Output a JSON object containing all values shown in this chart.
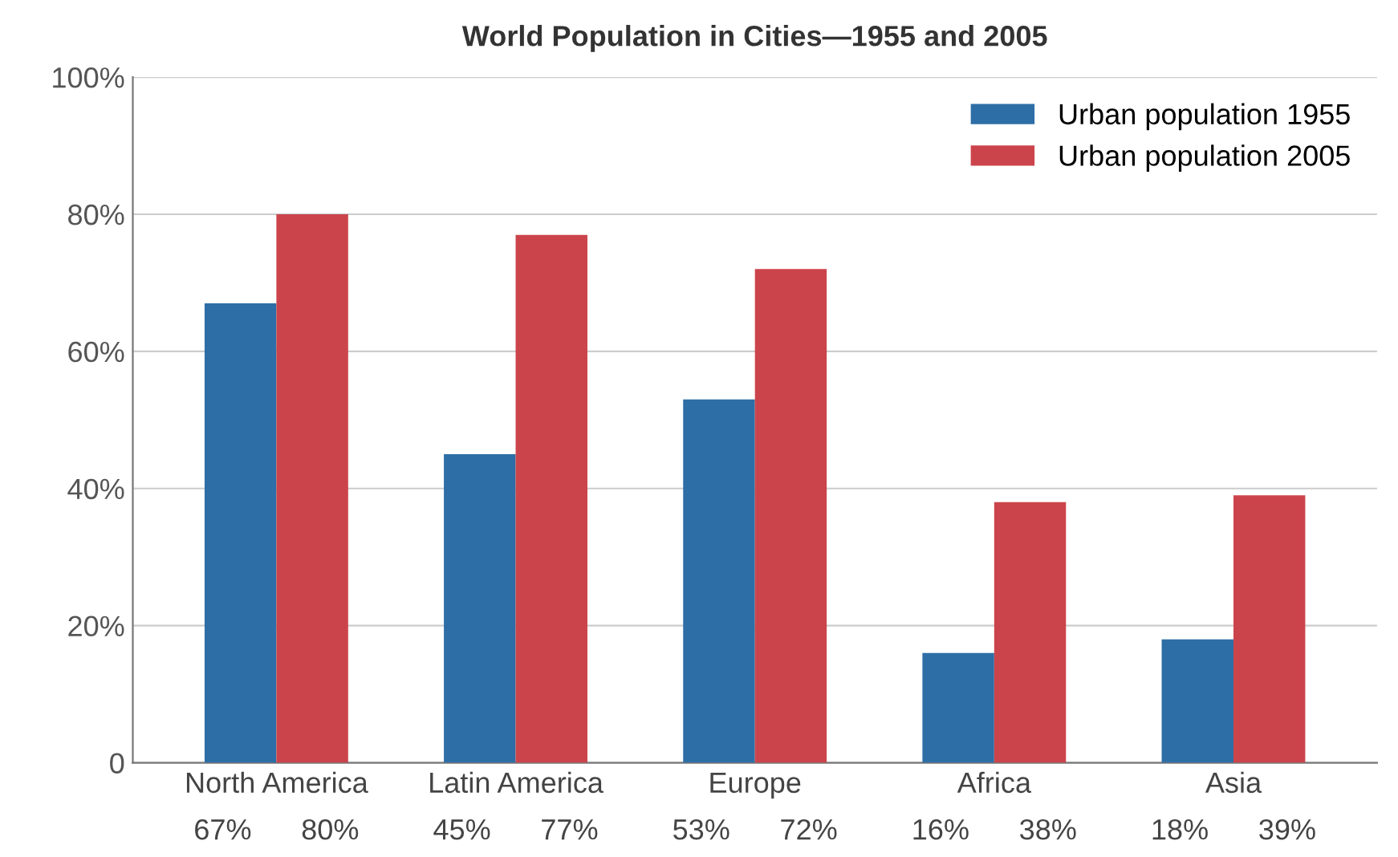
{
  "chart_data": {
    "type": "bar",
    "title": "World Population in Cities—1955 and 2005",
    "categories": [
      "North America",
      "Latin America",
      "Europe",
      "Africa",
      "Asia"
    ],
    "series": [
      {
        "name": "Urban population 1955",
        "color": "#2e6ea6",
        "values": [
          67,
          45,
          53,
          16,
          18
        ],
        "value_labels": [
          "67%",
          "45%",
          "53%",
          "16%",
          "18%"
        ]
      },
      {
        "name": "Urban population 2005",
        "color": "#cc444b",
        "values": [
          80,
          77,
          72,
          38,
          39
        ],
        "value_labels": [
          "80%",
          "77%",
          "72%",
          "38%",
          "39%"
        ]
      }
    ],
    "ylim": [
      0,
      100
    ],
    "yticks": [
      {
        "value": 0,
        "label": "0"
      },
      {
        "value": 20,
        "label": "20%"
      },
      {
        "value": 40,
        "label": "40%"
      },
      {
        "value": 60,
        "label": "60%"
      },
      {
        "value": 80,
        "label": "80%"
      },
      {
        "value": 100,
        "label": "100%"
      }
    ],
    "grid": "y",
    "legend": "top right"
  }
}
